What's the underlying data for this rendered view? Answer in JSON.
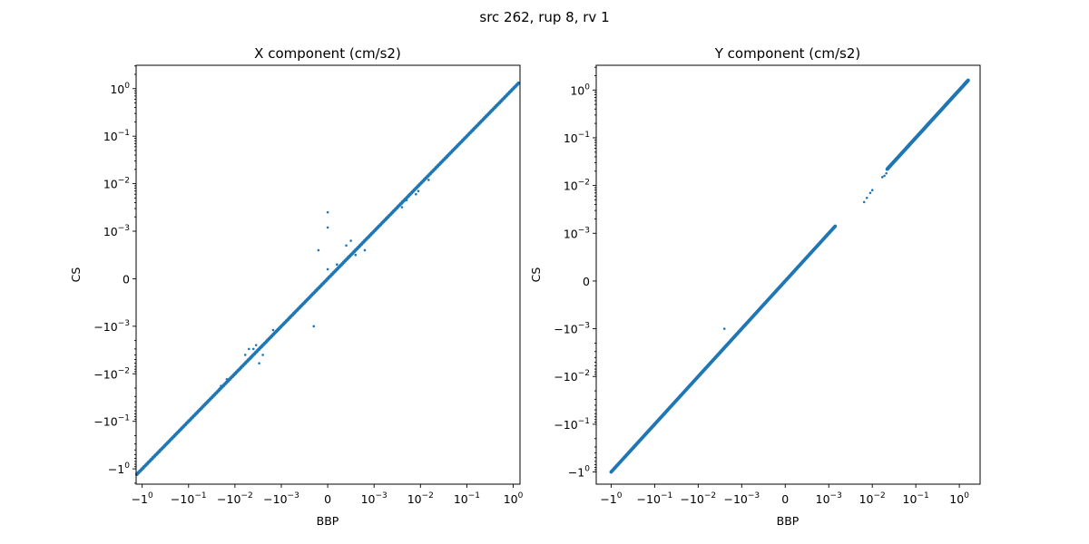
{
  "figure": {
    "suptitle": "src 262, rup 8, rv 1"
  },
  "chart_data": [
    {
      "type": "scatter",
      "title": "X component (cm/s2)",
      "xlabel": "BBP",
      "ylabel": "CS",
      "scale": "symlog",
      "linthresh": 0.001,
      "xlim": [
        -1.35,
        1.4
      ],
      "ylim": [
        -2.1,
        3.1
      ],
      "marker_color": "#1f77b4",
      "grid": false,
      "legend": null,
      "x_ticks": [
        {
          "base": "−1",
          "exp": "0"
        },
        {
          "base": "−10",
          "exp": "−1"
        },
        {
          "base": "−10",
          "exp": "−2"
        },
        {
          "base": "−10",
          "exp": "−3"
        },
        {
          "base": "0",
          "exp": ""
        },
        {
          "base": "10",
          "exp": "−3"
        },
        {
          "base": "10",
          "exp": "−2"
        },
        {
          "base": "10",
          "exp": "−1"
        },
        {
          "base": "10",
          "exp": "0"
        }
      ],
      "y_ticks": [
        {
          "base": "−1",
          "exp": "0"
        },
        {
          "base": "−10",
          "exp": "−1"
        },
        {
          "base": "−10",
          "exp": "−2"
        },
        {
          "base": "−10",
          "exp": "−3"
        },
        {
          "base": "0",
          "exp": ""
        },
        {
          "base": "10",
          "exp": "−3"
        },
        {
          "base": "10",
          "exp": "−2"
        },
        {
          "base": "10",
          "exp": "−1"
        },
        {
          "base": "10",
          "exp": "0"
        }
      ],
      "points": {
        "diagonal": [
          -1.3,
          1.3
        ],
        "scatter": [
          [
            -0.0002,
            0.0006
          ],
          [
            0.0,
            0.0002
          ],
          [
            0.0,
            0.0012
          ],
          [
            0.0,
            0.0025
          ],
          [
            0.0002,
            0.0003
          ],
          [
            0.0004,
            0.0007
          ],
          [
            0.0005,
            0.0008
          ],
          [
            0.0006,
            0.0005
          ],
          [
            0.0008,
            0.0006
          ],
          [
            -0.0003,
            -0.001
          ],
          [
            -0.0015,
            -0.0012
          ],
          [
            -0.004,
            -0.003
          ],
          [
            -0.005,
            -0.003
          ],
          [
            -0.006,
            -0.004
          ],
          [
            -0.003,
            -0.006
          ],
          [
            -0.0025,
            -0.004
          ],
          [
            -0.0035,
            -0.0025
          ],
          [
            0.004,
            0.0032
          ],
          [
            0.005,
            0.0045
          ],
          [
            0.008,
            0.006
          ],
          [
            0.009,
            0.007
          ],
          [
            0.015,
            0.012
          ],
          [
            -0.02,
            -0.018
          ],
          [
            -0.015,
            -0.013
          ]
        ]
      }
    },
    {
      "type": "scatter",
      "title": "Y component (cm/s2)",
      "xlabel": "BBP",
      "ylabel": "CS",
      "scale": "symlog",
      "linthresh": 0.001,
      "xlim": [
        -2.2,
        3.0
      ],
      "ylim": [
        -1.8,
        3.3
      ],
      "marker_color": "#1f77b4",
      "grid": false,
      "legend": null,
      "x_ticks": [
        {
          "base": "−1",
          "exp": "0"
        },
        {
          "base": "−10",
          "exp": "−1"
        },
        {
          "base": "−10",
          "exp": "−2"
        },
        {
          "base": "−10",
          "exp": "−3"
        },
        {
          "base": "0",
          "exp": ""
        },
        {
          "base": "10",
          "exp": "−3"
        },
        {
          "base": "10",
          "exp": "−2"
        },
        {
          "base": "10",
          "exp": "−1"
        },
        {
          "base": "10",
          "exp": "0"
        }
      ],
      "y_ticks": [
        {
          "base": "−1",
          "exp": "0"
        },
        {
          "base": "−10",
          "exp": "−1"
        },
        {
          "base": "−10",
          "exp": "−2"
        },
        {
          "base": "−10",
          "exp": "−3"
        },
        {
          "base": "0",
          "exp": ""
        },
        {
          "base": "10",
          "exp": "−3"
        },
        {
          "base": "10",
          "exp": "−2"
        },
        {
          "base": "10",
          "exp": "−1"
        },
        {
          "base": "10",
          "exp": "0"
        }
      ],
      "points": {
        "diagonal_segments": [
          [
            -1.0,
            0.0014
          ],
          [
            0.022,
            1.6
          ]
        ],
        "scatter": [
          [
            -0.0025,
            -0.001
          ],
          [
            0.0065,
            0.0045
          ],
          [
            0.0075,
            0.0055
          ],
          [
            0.009,
            0.007
          ],
          [
            0.01,
            0.008
          ],
          [
            0.017,
            0.015
          ],
          [
            0.019,
            0.016
          ],
          [
            0.021,
            0.018
          ]
        ]
      }
    }
  ]
}
